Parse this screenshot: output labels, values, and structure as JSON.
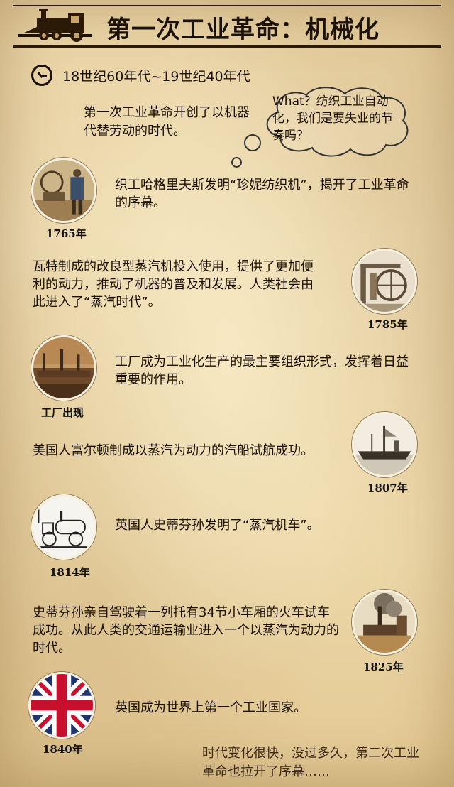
{
  "header": {
    "title": "第一次工业革命：机械化"
  },
  "period": {
    "text": "18世纪60年代~19世纪40年代"
  },
  "intro": {
    "text": "第一次工业革命开创了以机器代替劳动的时代。"
  },
  "thought": {
    "text": "What？纺织工业自动化，我们是要失业的节奏吗？"
  },
  "events": [
    {
      "year": "1765年",
      "text": "织工哈格里夫斯发明“珍妮纺织机”，揭开了工业革命的序幕。"
    },
    {
      "year": "1785年",
      "text": "瓦特制成的改良型蒸汽机投入使用，提供了更加便利的动力，推动了机器的普及和发展。人类社会由此进入了“蒸汽时代”。"
    },
    {
      "year": "工厂出现",
      "text": "工厂成为工业化生产的最主要组织形式，发挥着日益重要的作用。"
    },
    {
      "year": "1807年",
      "text": "美国人富尔顿制成以蒸汽为动力的汽船试航成功。"
    },
    {
      "year": "1814年",
      "text": "英国人史蒂芬孙发明了“蒸汽机车”。"
    },
    {
      "year": "1825年",
      "text": "史蒂芬孙亲自驾驶着一列托有34节小车厢的火车试车成功。从此人类的交通运输业进入一个以蒸汽为动力的时代。"
    },
    {
      "year": "1840年",
      "text": "英国成为世界上第一个工业国家。"
    }
  ],
  "outro": {
    "text": "时代变化很快，没过多久，第二次工业革命也拉开了序幕……"
  }
}
